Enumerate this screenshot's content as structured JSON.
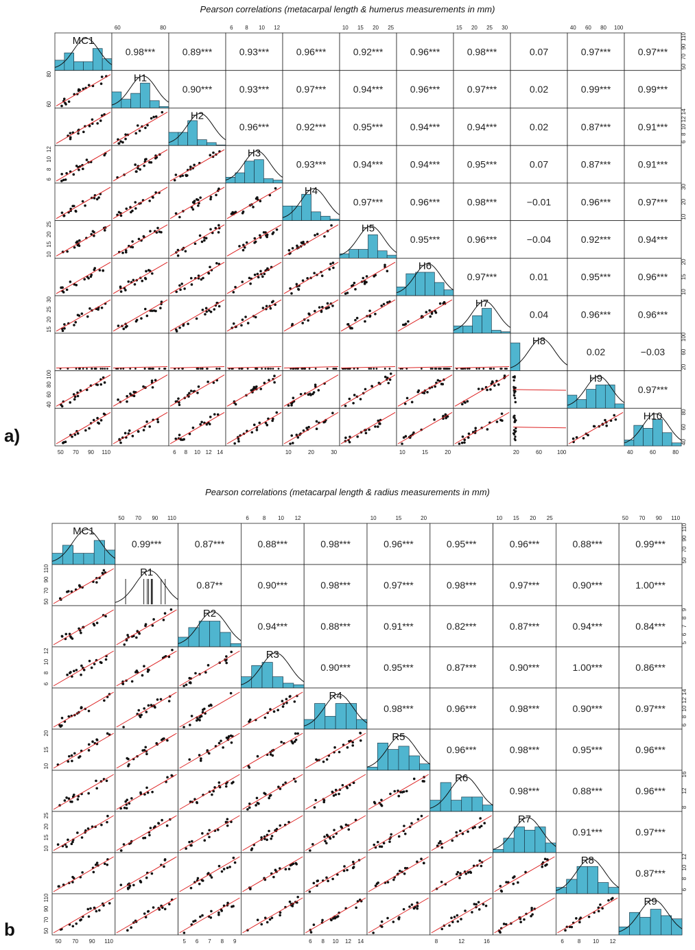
{
  "chart_data": [
    {
      "type": "scatter-matrix",
      "panel_label": "a)",
      "title": "Pearson correlations (metacarpal length & humerus measurements in mm)",
      "variables": [
        "MC1",
        "H1",
        "H2",
        "H3",
        "H4",
        "H5",
        "H6",
        "H7",
        "H8",
        "H9",
        "H10"
      ],
      "ticks": {
        "MC1": [
          "50",
          "70",
          "90",
          "110"
        ],
        "H1": [
          "60",
          "80"
        ],
        "H2": [
          "6",
          "8",
          "10",
          "12",
          "14"
        ],
        "H3": [
          "6",
          "8",
          "10",
          "12"
        ],
        "H4": [
          "10",
          "20",
          "30"
        ],
        "H5": [
          "10",
          "15",
          "20",
          "25"
        ],
        "H6": [
          "10",
          "15",
          "20"
        ],
        "H7": [
          "15",
          "20",
          "25",
          "30"
        ],
        "H8": [
          "20",
          "60",
          "100"
        ],
        "H9": [
          "40",
          "60",
          "80",
          "100"
        ],
        "H10": [
          "40",
          "60",
          "80"
        ]
      },
      "correlations": [
        [
          "0.98***",
          "0.89***",
          "0.93***",
          "0.96***",
          "0.92***",
          "0.96***",
          "0.98***",
          "0.07",
          "0.97***",
          "0.97***"
        ],
        [
          "0.90***",
          "0.93***",
          "0.97***",
          "0.94***",
          "0.96***",
          "0.97***",
          "0.02",
          "0.99***",
          "0.99***"
        ],
        [
          "0.96***",
          "0.92***",
          "0.95***",
          "0.94***",
          "0.94***",
          "0.02",
          "0.87***",
          "0.91***"
        ],
        [
          "0.93***",
          "0.94***",
          "0.94***",
          "0.95***",
          "0.07",
          "0.87***",
          "0.91***"
        ],
        [
          "0.97***",
          "0.96***",
          "0.98***",
          "−0.01",
          "0.96***",
          "0.97***"
        ],
        [
          "0.95***",
          "0.96***",
          "−0.04",
          "0.92***",
          "0.94***"
        ],
        [
          "0.97***",
          "0.01",
          "0.95***",
          "0.96***"
        ],
        [
          "0.04",
          "0.96***",
          "0.96***"
        ],
        [
          "0.02",
          "−0.03"
        ],
        [
          "0.97***"
        ]
      ],
      "histograms": {
        "MC1": [
          0.35,
          0.6,
          0.3,
          0.3,
          0.75,
          0.4
        ],
        "H1": [
          0.55,
          0.3,
          0.5,
          0.85,
          0.25,
          0.05
        ],
        "H2": [
          0.45,
          0.45,
          0.85,
          0.2,
          0.1,
          0.02
        ],
        "H3": [
          0.2,
          0.35,
          0.75,
          0.8,
          0.15,
          0.1
        ],
        "H4": [
          0.5,
          0.5,
          0.9,
          0.3,
          0.15,
          0.05
        ],
        "H5": [
          0.15,
          0.3,
          0.3,
          0.8,
          0.25,
          0.1
        ],
        "H6": [
          0.3,
          0.75,
          0.8,
          0.8,
          0.45,
          0.2
        ],
        "H7": [
          0.25,
          0.25,
          0.6,
          0.85,
          0.1,
          0.05
        ],
        "H8": [
          0.95,
          0,
          0,
          0,
          0,
          0
        ],
        "H9": [
          0.45,
          0.3,
          0.65,
          0.8,
          0.8,
          0.15
        ],
        "H10": [
          0.2,
          0.7,
          0.6,
          0.9,
          0.45,
          0.1
        ]
      }
    },
    {
      "type": "scatter-matrix",
      "panel_label": "b",
      "title": "Pearson correlations (metacarpal length & radius measurements in mm)",
      "variables": [
        "MC1",
        "R1",
        "R2",
        "R3",
        "R4",
        "R5",
        "R6",
        "R7",
        "R8",
        "R9"
      ],
      "ticks": {
        "MC1": [
          "50",
          "70",
          "90",
          "110"
        ],
        "R1": [
          "50",
          "70",
          "90",
          "110"
        ],
        "R2": [
          "5",
          "6",
          "7",
          "8",
          "9"
        ],
        "R3": [
          "6",
          "8",
          "10",
          "12"
        ],
        "R4": [
          "6",
          "8",
          "10",
          "12",
          "14"
        ],
        "R5": [
          "10",
          "15",
          "20"
        ],
        "R6": [
          "8",
          "12",
          "16"
        ],
        "R7": [
          "10",
          "15",
          "20",
          "25"
        ],
        "R8": [
          "6",
          "8",
          "10",
          "12"
        ],
        "R9": [
          "50",
          "70",
          "90",
          "110"
        ]
      },
      "correlations": [
        [
          "0.99***",
          "0.87***",
          "0.88***",
          "0.98***",
          "0.96***",
          "0.95***",
          "0.96***",
          "0.88***",
          "0.99***"
        ],
        [
          "0.87**",
          "0.90***",
          "0.98***",
          "0.97***",
          "0.98***",
          "0.97***",
          "0.90***",
          "1.00***"
        ],
        [
          "0.94***",
          "0.88***",
          "0.91***",
          "0.82***",
          "0.87***",
          "0.94***",
          "0.84***"
        ],
        [
          "0.90***",
          "0.95***",
          "0.87***",
          "0.90***",
          "1.00***",
          "0.86***"
        ],
        [
          "0.98***",
          "0.96***",
          "0.98***",
          "0.90***",
          "0.97***"
        ],
        [
          "0.96***",
          "0.98***",
          "0.95***",
          "0.96***"
        ],
        [
          "0.98***",
          "0.88***",
          "0.96***"
        ],
        [
          "0.91***",
          "0.97***"
        ],
        [
          "0.87***"
        ]
      ],
      "histograms": {
        "MC1": [
          0.35,
          0.6,
          0.35,
          0.35,
          0.75,
          0.45
        ],
        "R1": [],
        "R2": [
          0.3,
          0.6,
          0.8,
          0.8,
          0.45,
          0.1
        ],
        "R3": [
          0.35,
          0.7,
          0.8,
          0.35,
          0.15,
          0.1
        ],
        "R4": [
          0.3,
          0.8,
          0.4,
          0.8,
          0.8,
          0.3
        ],
        "R5": [
          0.1,
          0.85,
          0.65,
          0.75,
          0.45,
          0.2
        ],
        "R6": [
          0.35,
          0.9,
          0.35,
          0.45,
          0.45,
          0.2
        ],
        "R7": [
          0.1,
          0.45,
          0.8,
          0.7,
          0.8,
          0.3
        ],
        "R8": [
          0.2,
          0.45,
          0.85,
          0.85,
          0.35,
          0.2
        ],
        "R9": [
          0.25,
          0.7,
          0.55,
          0.8,
          0.6,
          0.5
        ]
      }
    }
  ]
}
